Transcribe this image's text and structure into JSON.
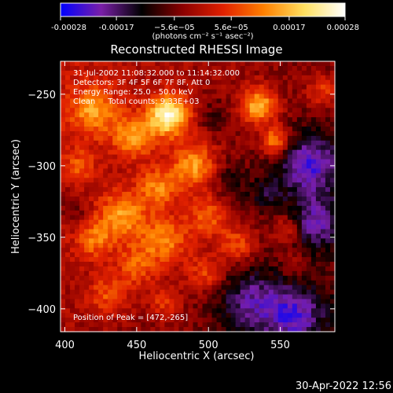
{
  "chart_data": {
    "type": "heatmap",
    "title": "Reconstructed RHESSI Image",
    "xlabel": "Heliocentric X (arcsec)",
    "ylabel": "Heliocentric Y (arcsec)",
    "xlim": [
      397,
      588
    ],
    "ylim": [
      -416,
      -227
    ],
    "xticks": [
      400,
      450,
      500,
      550
    ],
    "yticks": [
      -250,
      -300,
      -350,
      -400
    ],
    "colorbar": {
      "range": [
        -0.00028,
        0.00028
      ],
      "tick_values": [
        -0.00028,
        -0.00017,
        -5.6e-05,
        5.6e-05,
        0.00017,
        0.00028
      ],
      "tick_labels": [
        "-0.00028",
        "-0.00017",
        "−5.6e−05",
        "5.6e−05",
        "0.00017",
        "0.00028"
      ],
      "unit_label": "(photons cm⁻² s⁻¹ asec⁻²)",
      "colormap": [
        "#0000ff",
        "#7a1fa8",
        "#000000",
        "#8a0000",
        "#e02000",
        "#ff8000",
        "#ffe060",
        "#ffffff"
      ]
    },
    "annotations": [
      "31-Jul-2002 11:08:32.000 to 11:14:32.000",
      "Detectors: 3F 4F 5F 6F 7F 8F, Att 0",
      "Energy Range: 25.0 - 50.0 keV",
      "Clean     Total counts: 9.33E+03",
      "Position of Peak = [472,-265]"
    ],
    "peak": {
      "x": 472,
      "y": -265
    },
    "bright_blobs": [
      {
        "x": 472,
        "y": -265,
        "r": 10,
        "v": 0.00028
      },
      {
        "x": 535,
        "y": -258,
        "r": 9,
        "v": 0.0002
      },
      {
        "x": 547,
        "y": -283,
        "r": 7,
        "v": 0.00018
      },
      {
        "x": 420,
        "y": -262,
        "r": 12,
        "v": 0.00015
      },
      {
        "x": 448,
        "y": -280,
        "r": 10,
        "v": 0.00016
      },
      {
        "x": 490,
        "y": -300,
        "r": 11,
        "v": 0.00017
      },
      {
        "x": 465,
        "y": -315,
        "r": 10,
        "v": 0.00014
      },
      {
        "x": 440,
        "y": -335,
        "r": 12,
        "v": 0.00016
      },
      {
        "x": 500,
        "y": -335,
        "r": 10,
        "v": 0.00013
      },
      {
        "x": 470,
        "y": -352,
        "r": 12,
        "v": 0.00015
      },
      {
        "x": 420,
        "y": -352,
        "r": 9,
        "v": 0.00012
      },
      {
        "x": 520,
        "y": -355,
        "r": 9,
        "v": 0.00012
      },
      {
        "x": 555,
        "y": -345,
        "r": 7,
        "v": 0.0001
      },
      {
        "x": 450,
        "y": -370,
        "r": 10,
        "v": 0.00011
      },
      {
        "x": 498,
        "y": -375,
        "r": 9,
        "v": 0.00011
      },
      {
        "x": 430,
        "y": -390,
        "r": 10,
        "v": 0.0001
      },
      {
        "x": 470,
        "y": -395,
        "r": 8,
        "v": 9e-05
      },
      {
        "x": 580,
        "y": -248,
        "r": 8,
        "v": 0.0001
      },
      {
        "x": 560,
        "y": -370,
        "r": 6,
        "v": 6e-05
      },
      {
        "x": 410,
        "y": -300,
        "r": 8,
        "v": 9e-05
      }
    ],
    "dark_blobs": [
      {
        "x": 570,
        "y": -300,
        "r": 16,
        "v": -0.00017
      },
      {
        "x": 575,
        "y": -340,
        "r": 12,
        "v": -0.00014
      },
      {
        "x": 530,
        "y": -395,
        "r": 16,
        "v": -0.00013
      },
      {
        "x": 560,
        "y": -405,
        "r": 14,
        "v": -0.00015
      },
      {
        "x": 515,
        "y": -310,
        "r": 10,
        "v": -6e-05
      },
      {
        "x": 505,
        "y": -265,
        "r": 9,
        "v": -5e-05
      },
      {
        "x": 405,
        "y": -330,
        "r": 8,
        "v": -6e-05
      },
      {
        "x": 540,
        "y": -320,
        "r": 8,
        "v": -7e-05
      }
    ]
  },
  "footer": {
    "timestamp": "30-Apr-2022 12:56"
  }
}
